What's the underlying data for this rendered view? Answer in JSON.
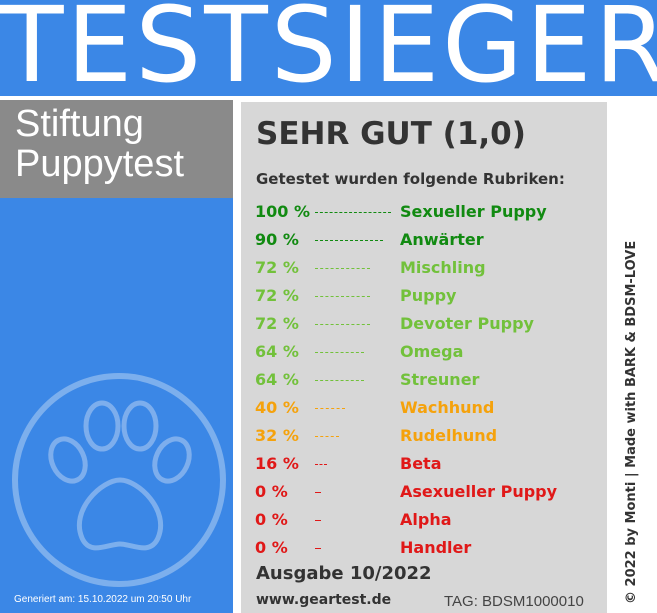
{
  "header": {
    "title": "TESTSIEGER"
  },
  "brand": {
    "line1": "Stiftung",
    "line2": "Puppytest"
  },
  "result": {
    "grade": "SEHR GUT (1,0)",
    "subtitle": "Getestet wurden folgende Rubriken:",
    "rows": [
      {
        "pct": "100 %",
        "label": "Sexueller Puppy",
        "value": 100,
        "color": "#118a11"
      },
      {
        "pct": "90 %",
        "label": "Anwärter",
        "value": 90,
        "color": "#118a11"
      },
      {
        "pct": "72 %",
        "label": "Mischling",
        "value": 72,
        "color": "#72c13b"
      },
      {
        "pct": "72 %",
        "label": "Puppy",
        "value": 72,
        "color": "#72c13b"
      },
      {
        "pct": "72 %",
        "label": "Devoter Puppy",
        "value": 72,
        "color": "#72c13b"
      },
      {
        "pct": "64 %",
        "label": "Omega",
        "value": 64,
        "color": "#72c13b"
      },
      {
        "pct": "64 %",
        "label": "Streuner",
        "value": 64,
        "color": "#72c13b"
      },
      {
        "pct": "40 %",
        "label": "Wachhund",
        "value": 40,
        "color": "#f5a20c"
      },
      {
        "pct": "32 %",
        "label": "Rudelhund",
        "value": 32,
        "color": "#f5a20c"
      },
      {
        "pct": "16 %",
        "label": "Beta",
        "value": 16,
        "color": "#e01818"
      },
      {
        "pct": "0 %",
        "label": "Asexueller Puppy",
        "value": 0,
        "color": "#e01818"
      },
      {
        "pct": "0 %",
        "label": "Alpha",
        "value": 0,
        "color": "#e01818"
      },
      {
        "pct": "0 %",
        "label": "Handler",
        "value": 0,
        "color": "#e01818"
      }
    ],
    "issue": "Ausgabe 10/2022",
    "url": "www.geartest.de",
    "tag": "TAG: BDSM1000010"
  },
  "footer": {
    "generated": "Generiert am: 15.10.2022 um 20:50 Uhr",
    "credit": "© 2022 by Monti | Made with BARK & BDSM-LOVE"
  },
  "icons": {
    "paw": "paw-print-icon"
  },
  "colors": {
    "blue": "#3b87e6",
    "grey": "#8a8a8a",
    "panel": "#d7d7d7",
    "green_dark": "#118a11",
    "green_light": "#72c13b",
    "orange": "#f5a20c",
    "red": "#e01818"
  }
}
